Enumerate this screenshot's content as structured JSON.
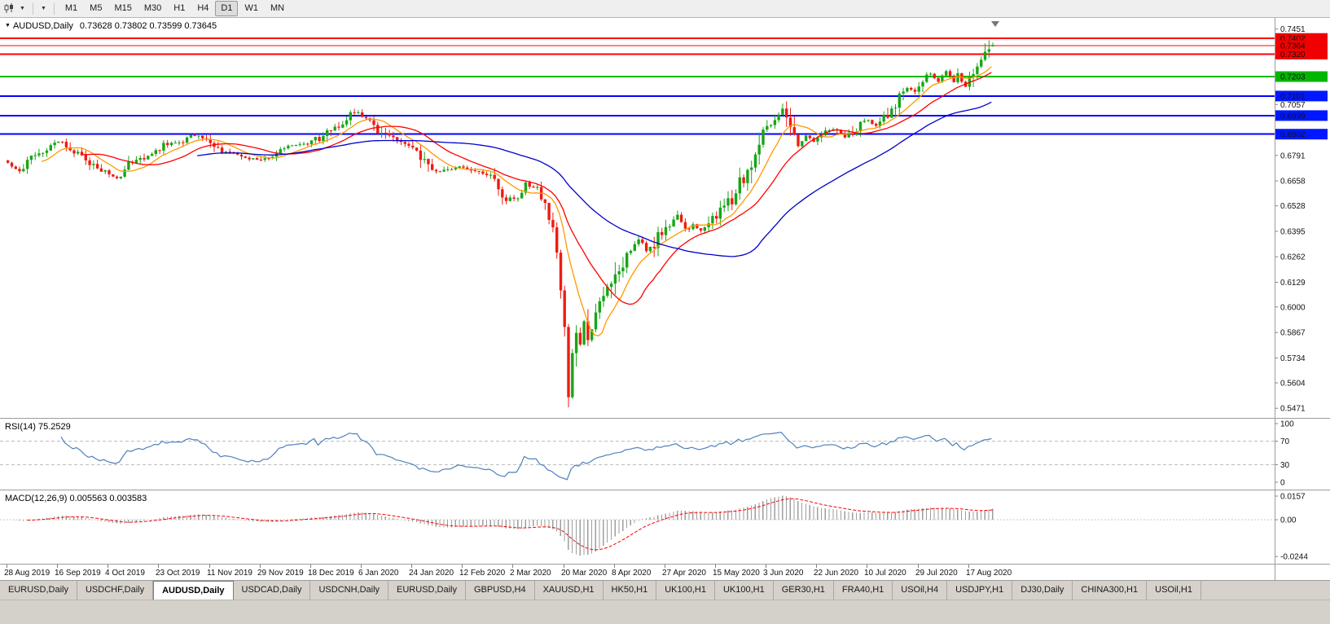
{
  "colors": {
    "candle_up": "#17a617",
    "candle_down": "#ee1c10",
    "wick_up": "#17a617",
    "wick_down": "#ee1c10",
    "ma_fast": "#ff9900",
    "ma_mid": "#ff0000",
    "ma_slow": "#0000cc",
    "line_red": "#ff0000",
    "line_green": "#00bb00",
    "line_blue": "#0000ff",
    "rsi_line": "#4f81bd",
    "macd_hist": "#9e9e9e",
    "macd_signal": "#ff0000",
    "level_dashed": "#b8b8b8"
  },
  "toolbar": {
    "timeframes": [
      "M1",
      "M5",
      "M15",
      "M30",
      "H1",
      "H4",
      "D1",
      "W1",
      "MN"
    ],
    "active_timeframe": "D1"
  },
  "chart": {
    "title": "AUDUSD,Daily",
    "ohlc": "0.73628 0.73802 0.73599 0.73645",
    "price_axis": {
      "min": 0.5455,
      "max": 0.7475,
      "ticks": [
        "0.7451",
        "0.7057",
        "0.6791",
        "0.6658",
        "0.6528",
        "0.6395",
        "0.6262",
        "0.6129",
        "0.6000",
        "0.5867",
        "0.5734",
        "0.5604",
        "0.5471"
      ]
    },
    "hlines": [
      {
        "price": 0.7402,
        "color": "#ff0000",
        "width": 2
      },
      {
        "price": 0.7364,
        "color": "#ff0000",
        "width": 1.2
      },
      {
        "price": 0.732,
        "color": "#ff0000",
        "width": 2
      },
      {
        "price": 0.7203,
        "color": "#00bb00",
        "width": 2
      },
      {
        "price": 0.7101,
        "color": "#0000ff",
        "width": 2
      },
      {
        "price": 0.6999,
        "color": "#0000ff",
        "width": 2
      },
      {
        "price": 0.6902,
        "color": "#0000ff",
        "width": 2
      }
    ],
    "badges": [
      {
        "label": "0.7402",
        "price": 0.7402,
        "color": "#f00000"
      },
      {
        "label": "0.7364",
        "price": 0.7364,
        "color": "#f00000"
      },
      {
        "label": "0.7320",
        "price": 0.732,
        "color": "#f00000"
      },
      {
        "label": "0.7203",
        "price": 0.7203,
        "color": "#00b700"
      },
      {
        "label": "0.7101",
        "price": 0.7101,
        "color": "#0018ff"
      },
      {
        "label": "0.6999",
        "price": 0.6999,
        "color": "#0018ff"
      },
      {
        "label": "0.6902",
        "price": 0.6902,
        "color": "#0018ff"
      }
    ],
    "date_labels": [
      "28 Aug 2019",
      "16 Sep 2019",
      "4 Oct 2019",
      "23 Oct 2019",
      "11 Nov 2019",
      "29 Nov 2019",
      "18 Dec 2019",
      "6 Jan 2020",
      "24 Jan 2020",
      "12 Feb 2020",
      "2 Mar 2020",
      "20 Mar 2020",
      "8 Apr 2020",
      "27 Apr 2020",
      "15 May 2020",
      "3 Jun 2020",
      "22 Jun 2020",
      "10 Jul 2020",
      "29 Jul 2020",
      "17 Aug 2020"
    ]
  },
  "rsi": {
    "label": "RSI(14) 75.2529",
    "period": 14,
    "axis": [
      {
        "label": "100",
        "v": 100
      },
      {
        "label": "70",
        "v": 70
      },
      {
        "label": "30",
        "v": 30
      },
      {
        "label": "0",
        "v": 0
      }
    ],
    "dashed_levels": [
      70,
      30
    ]
  },
  "macd": {
    "label": "MACD(12,26,9) 0.005563 0.003583",
    "fast": 12,
    "slow": 26,
    "signal": 9,
    "values": [
      0.005563,
      0.003583
    ],
    "axis": [
      {
        "label": "0.0157",
        "v": 0.0157
      },
      {
        "label": "0.00",
        "v": 0
      },
      {
        "label": "-0.0244",
        "v": -0.0244
      }
    ]
  },
  "tabs": {
    "active_index": 2,
    "items": [
      "EURUSD,Daily",
      "USDCHF,Daily",
      "AUDUSD,Daily",
      "USDCAD,Daily",
      "USDCNH,Daily",
      "EURUSD,Daily",
      "GBPUSD,H4",
      "XAUUSD,H1",
      "HK50,H1",
      "UK100,H1",
      "UK100,H1",
      "GER30,H1",
      "FRA40,H1",
      "USOil,H4",
      "USDJPY,H1",
      "DJ30,Daily",
      "CHINA300,H1",
      "USOil,H1"
    ]
  },
  "chart_data": {
    "type": "candlestick",
    "symbol": "AUDUSD",
    "timeframe": "Daily",
    "title": "AUDUSD,Daily",
    "x_range": [
      "28 Aug 2019",
      "late Aug 2020"
    ],
    "y_range": [
      0.5455,
      0.7475
    ],
    "count": 254,
    "seed": 20200828,
    "last_ohlc": {
      "open": 0.73628,
      "high": 0.73802,
      "low": 0.73599,
      "close": 0.73645
    },
    "anchors": [
      [
        0,
        0.6745
      ],
      [
        3,
        0.6715
      ],
      [
        6,
        0.6775
      ],
      [
        9,
        0.6815
      ],
      [
        12,
        0.6855
      ],
      [
        14,
        0.6868
      ],
      [
        17,
        0.6812
      ],
      [
        20,
        0.6772
      ],
      [
        23,
        0.6722
      ],
      [
        26,
        0.6706
      ],
      [
        28,
        0.6672
      ],
      [
        31,
        0.6742
      ],
      [
        34,
        0.6772
      ],
      [
        37,
        0.6802
      ],
      [
        40,
        0.6846
      ],
      [
        44,
        0.6856
      ],
      [
        47,
        0.6892
      ],
      [
        50,
        0.6882
      ],
      [
        53,
        0.6846
      ],
      [
        56,
        0.6802
      ],
      [
        59,
        0.6792
      ],
      [
        62,
        0.6772
      ],
      [
        65,
        0.6766
      ],
      [
        68,
        0.6792
      ],
      [
        71,
        0.6826
      ],
      [
        74,
        0.6842
      ],
      [
        77,
        0.6856
      ],
      [
        80,
        0.6882
      ],
      [
        83,
        0.6932
      ],
      [
        86,
        0.6962
      ],
      [
        89,
        0.7022
      ],
      [
        92,
        0.6986
      ],
      [
        95,
        0.6926
      ],
      [
        98,
        0.6882
      ],
      [
        101,
        0.6852
      ],
      [
        104,
        0.6836
      ],
      [
        107,
        0.6762
      ],
      [
        110,
        0.6702
      ],
      [
        113,
        0.6722
      ],
      [
        116,
        0.6732
      ],
      [
        119,
        0.6716
      ],
      [
        122,
        0.6702
      ],
      [
        125,
        0.6682
      ],
      [
        128,
        0.6562
      ],
      [
        131,
        0.6582
      ],
      [
        133,
        0.6642
      ],
      [
        135,
        0.6622
      ],
      [
        137,
        0.6582
      ],
      [
        139,
        0.6482
      ],
      [
        140,
        0.6382
      ],
      [
        141,
        0.6282
      ],
      [
        142,
        0.6122
      ],
      [
        143,
        0.5882
      ],
      [
        144,
        0.5562
      ],
      [
        145,
        0.5772
      ],
      [
        146,
        0.5902
      ],
      [
        147,
        0.5802
      ],
      [
        148,
        0.5922
      ],
      [
        149,
        0.5822
      ],
      [
        150,
        0.5902
      ],
      [
        152,
        0.6002
      ],
      [
        154,
        0.6092
      ],
      [
        156,
        0.6172
      ],
      [
        158,
        0.6232
      ],
      [
        160,
        0.6322
      ],
      [
        162,
        0.6362
      ],
      [
        164,
        0.6282
      ],
      [
        166,
        0.6332
      ],
      [
        168,
        0.6392
      ],
      [
        170,
        0.6442
      ],
      [
        172,
        0.6482
      ],
      [
        174,
        0.6402
      ],
      [
        176,
        0.6432
      ],
      [
        178,
        0.6392
      ],
      [
        180,
        0.6442
      ],
      [
        182,
        0.6462
      ],
      [
        184,
        0.6542
      ],
      [
        186,
        0.6562
      ],
      [
        188,
        0.6642
      ],
      [
        190,
        0.6712
      ],
      [
        192,
        0.6802
      ],
      [
        194,
        0.6902
      ],
      [
        196,
        0.6962
      ],
      [
        198,
        0.7002
      ],
      [
        199,
        0.7042
      ],
      [
        200,
        0.6992
      ],
      [
        202,
        0.6872
      ],
      [
        203,
        0.6842
      ],
      [
        205,
        0.6892
      ],
      [
        207,
        0.6862
      ],
      [
        209,
        0.6892
      ],
      [
        211,
        0.6926
      ],
      [
        213,
        0.6936
      ],
      [
        215,
        0.6886
      ],
      [
        217,
        0.6916
      ],
      [
        219,
        0.6952
      ],
      [
        221,
        0.6972
      ],
      [
        223,
        0.6956
      ],
      [
        225,
        0.6996
      ],
      [
        227,
        0.7022
      ],
      [
        229,
        0.7092
      ],
      [
        231,
        0.7152
      ],
      [
        233,
        0.7122
      ],
      [
        235,
        0.7196
      ],
      [
        237,
        0.7222
      ],
      [
        239,
        0.7172
      ],
      [
        241,
        0.7232
      ],
      [
        243,
        0.7182
      ],
      [
        244,
        0.7212
      ],
      [
        246,
        0.7152
      ],
      [
        248,
        0.7232
      ],
      [
        250,
        0.7292
      ],
      [
        251,
        0.7332
      ],
      [
        252,
        0.7362
      ],
      [
        253,
        0.7365
      ]
    ],
    "specials": [
      {
        "i": 89,
        "high": 0.7035
      },
      {
        "i": 144,
        "low": 0.551
      },
      {
        "i": 199,
        "high": 0.7062
      },
      {
        "i": 252,
        "high": 0.7392
      }
    ],
    "moving_averages": [
      {
        "period": 10,
        "color_key": "ma_fast"
      },
      {
        "period": 20,
        "color_key": "ma_mid"
      },
      {
        "period": 50,
        "color_key": "ma_slow"
      }
    ]
  }
}
